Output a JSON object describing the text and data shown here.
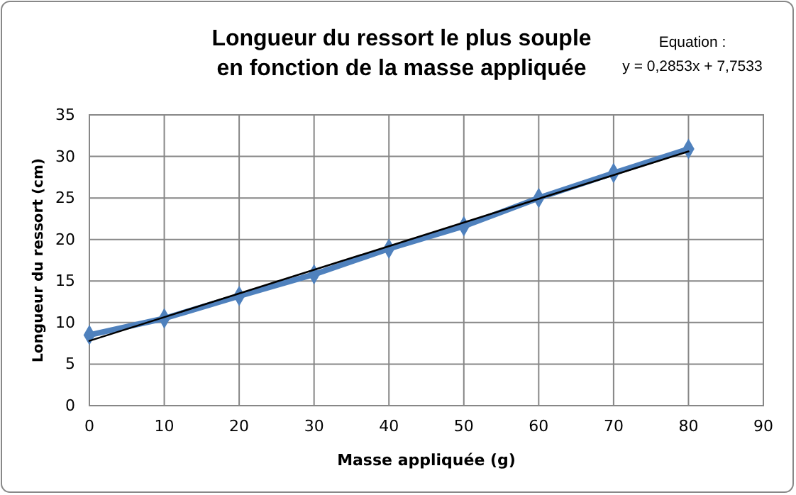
{
  "chart_data": {
    "type": "line",
    "title": "Longueur du ressort le plus souple\nen fonction de la masse appliquée",
    "xlabel": "Masse appliquée (g)",
    "ylabel": "Longueur du ressort (cm)",
    "annotations": [
      "Equation :\ny = 0,2853x + 7,7533"
    ],
    "x": [
      0,
      10,
      20,
      30,
      40,
      50,
      60,
      70,
      80
    ],
    "series": [
      {
        "color": "#4f81bd",
        "values": [
          8.5,
          10.5,
          13.2,
          15.8,
          18.9,
          21.6,
          25,
          28,
          30.9
        ],
        "marker": "diamond"
      },
      {
        "type": "line",
        "color": "#000000",
        "x": [
          0,
          80
        ],
        "values": [
          7.8,
          30.6
        ],
        "marker": "none"
      }
    ],
    "xlim": [
      0,
      90
    ],
    "xticks": [
      0,
      10,
      20,
      30,
      40,
      50,
      60,
      70,
      80,
      90
    ],
    "ylim": [
      0,
      35
    ],
    "yticks": [
      0,
      5,
      10,
      15,
      20,
      25,
      30,
      35
    ],
    "grid": true
  }
}
